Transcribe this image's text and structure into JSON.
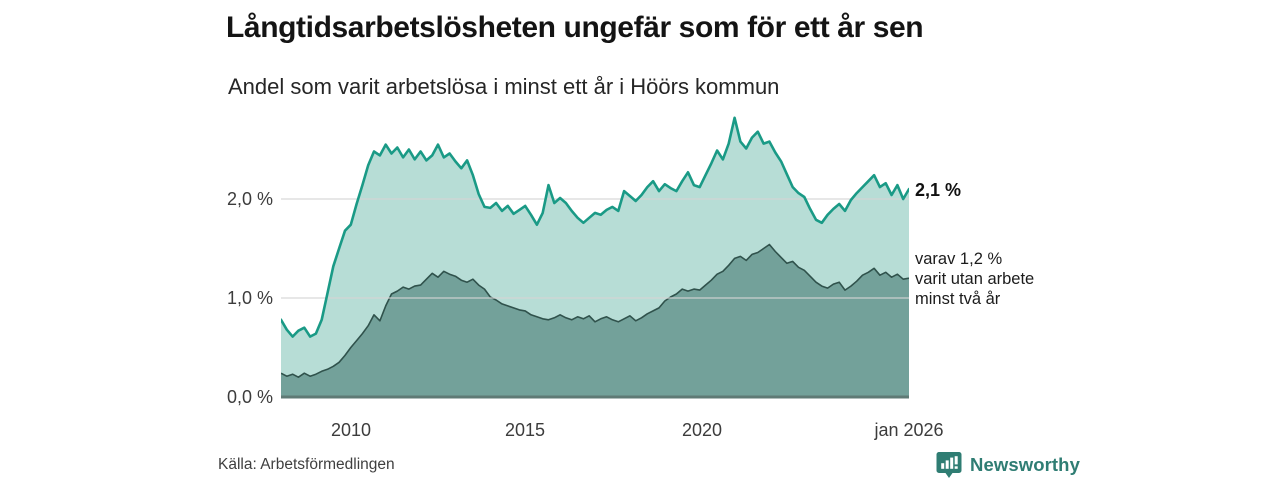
{
  "header": {
    "title": "Långtidsarbetslösheten ungefär som för ett år sen",
    "subtitle": "Andel som varit arbetslösa i minst ett år i Höörs kommun"
  },
  "axis": {
    "y_ticks": [
      {
        "label": "2,0 %",
        "value": 2.0
      },
      {
        "label": "1,0 %",
        "value": 1.0
      },
      {
        "label": "0,0 %",
        "value": 0.0
      }
    ],
    "x_ticks": [
      {
        "label": "2010",
        "year": 2010
      },
      {
        "label": "2015",
        "year": 2015
      },
      {
        "label": "2020",
        "year": 2020
      },
      {
        "label": "jan 2026",
        "year": 2026
      }
    ]
  },
  "annotations": {
    "latest_total": "2,1 %",
    "sub_lines": [
      "varav 1,2 %",
      "varit utan arbete",
      "minst två år"
    ]
  },
  "source": "Källa: Arbetsförmedlingen",
  "brand": {
    "name": "Newsworthy",
    "color": "#2f7d73"
  },
  "chart_data": {
    "type": "area",
    "title": "Långtidsarbetslösheten ungefär som för ett år sen",
    "subtitle": "Andel som varit arbetslösa i minst ett år i Höörs kommun",
    "unit": "%",
    "x_start": 2008.0,
    "x_end": 2026.0,
    "x_step_years": 0.1666667,
    "ylim": [
      0,
      2.95
    ],
    "gridline_values": [
      1.0,
      2.0
    ],
    "legend_position": "annotated-right",
    "grid": true,
    "colors": {
      "total_line": "#1a9a86",
      "total_fill": "#b7ddd6",
      "two_years_line": "#30524c",
      "two_years_fill": "#709e97",
      "gridline": "#d4d4d4",
      "baseline": "#5f7a75"
    },
    "series": [
      {
        "name": "Andel arbetslösa minst ett år",
        "latest_value": 2.1,
        "values": [
          0.78,
          0.68,
          0.61,
          0.67,
          0.7,
          0.61,
          0.64,
          0.78,
          1.05,
          1.32,
          1.5,
          1.68,
          1.74,
          1.95,
          2.14,
          2.34,
          2.48,
          2.44,
          2.55,
          2.46,
          2.52,
          2.42,
          2.5,
          2.4,
          2.48,
          2.39,
          2.44,
          2.55,
          2.42,
          2.46,
          2.38,
          2.31,
          2.39,
          2.24,
          2.05,
          1.92,
          1.91,
          1.96,
          1.88,
          1.93,
          1.85,
          1.89,
          1.93,
          1.84,
          1.74,
          1.86,
          2.14,
          1.96,
          2.01,
          1.96,
          1.88,
          1.81,
          1.76,
          1.81,
          1.86,
          1.84,
          1.89,
          1.92,
          1.88,
          2.08,
          2.03,
          1.98,
          2.04,
          2.12,
          2.18,
          2.08,
          2.15,
          2.11,
          2.08,
          2.18,
          2.27,
          2.14,
          2.12,
          2.24,
          2.36,
          2.49,
          2.4,
          2.56,
          2.82,
          2.58,
          2.51,
          2.62,
          2.68,
          2.56,
          2.58,
          2.47,
          2.38,
          2.25,
          2.12,
          2.06,
          2.02,
          1.9,
          1.79,
          1.76,
          1.84,
          1.9,
          1.95,
          1.88,
          1.99,
          2.06,
          2.12,
          2.18,
          2.24,
          2.12,
          2.16,
          2.04,
          2.14,
          2.0,
          2.1
        ]
      },
      {
        "name": "varav utan arbete minst två år",
        "latest_value": 1.2,
        "values": [
          0.24,
          0.21,
          0.23,
          0.2,
          0.24,
          0.21,
          0.23,
          0.26,
          0.28,
          0.31,
          0.35,
          0.42,
          0.5,
          0.57,
          0.64,
          0.72,
          0.83,
          0.77,
          0.92,
          1.04,
          1.07,
          1.11,
          1.09,
          1.12,
          1.13,
          1.19,
          1.25,
          1.21,
          1.27,
          1.24,
          1.22,
          1.18,
          1.16,
          1.19,
          1.13,
          1.09,
          1.01,
          0.98,
          0.94,
          0.92,
          0.9,
          0.88,
          0.87,
          0.83,
          0.81,
          0.79,
          0.78,
          0.8,
          0.83,
          0.8,
          0.78,
          0.81,
          0.79,
          0.82,
          0.76,
          0.79,
          0.81,
          0.78,
          0.76,
          0.79,
          0.82,
          0.77,
          0.8,
          0.84,
          0.87,
          0.9,
          0.97,
          1.01,
          1.04,
          1.09,
          1.07,
          1.09,
          1.08,
          1.13,
          1.18,
          1.24,
          1.27,
          1.33,
          1.4,
          1.42,
          1.38,
          1.44,
          1.46,
          1.5,
          1.54,
          1.47,
          1.41,
          1.35,
          1.37,
          1.31,
          1.28,
          1.22,
          1.16,
          1.12,
          1.1,
          1.14,
          1.16,
          1.08,
          1.12,
          1.17,
          1.23,
          1.26,
          1.3,
          1.23,
          1.26,
          1.21,
          1.24,
          1.19,
          1.2
        ]
      }
    ]
  }
}
